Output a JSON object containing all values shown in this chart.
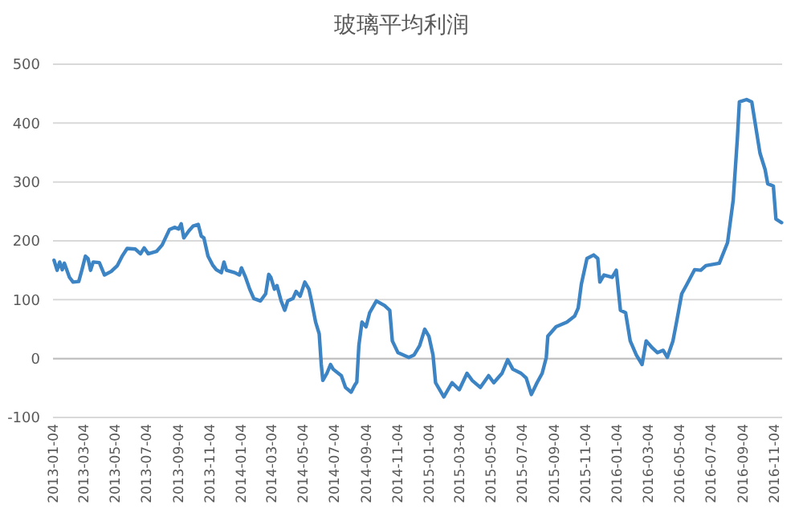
{
  "chart_data": {
    "type": "line",
    "title": "玻璃平均利润",
    "x": [
      "2013-01-06",
      "2013-01-12",
      "2013-01-17",
      "2013-01-22",
      "2013-01-26",
      "2013-02-05",
      "2013-02-12",
      "2013-02-23",
      "2013-03-01",
      "2013-03-08",
      "2013-03-13",
      "2013-03-18",
      "2013-03-23",
      "2013-04-04",
      "2013-04-14",
      "2013-04-27",
      "2013-05-09",
      "2013-05-19",
      "2013-05-28",
      "2013-06-13",
      "2013-06-23",
      "2013-06-30",
      "2013-07-08",
      "2013-07-24",
      "2013-08-04",
      "2013-08-18",
      "2013-08-28",
      "2013-09-05",
      "2013-09-10",
      "2013-09-15",
      "2013-09-25",
      "2013-10-03",
      "2013-10-13",
      "2013-10-19",
      "2013-10-24",
      "2013-11-01",
      "2013-11-10",
      "2013-11-17",
      "2013-11-27",
      "2013-12-02",
      "2013-12-07",
      "2013-12-23",
      "2014-01-01",
      "2014-01-05",
      "2014-01-13",
      "2014-01-21",
      "2014-01-29",
      "2014-02-11",
      "2014-02-21",
      "2014-02-27",
      "2014-03-03",
      "2014-03-10",
      "2014-03-15",
      "2014-03-23",
      "2014-03-30",
      "2014-04-05",
      "2014-04-15",
      "2014-04-21",
      "2014-04-29",
      "2014-05-08",
      "2014-05-16",
      "2014-05-21",
      "2014-05-29",
      "2014-06-05",
      "2014-06-09",
      "2014-06-12",
      "2014-06-20",
      "2014-06-27",
      "2014-07-02",
      "2014-07-18",
      "2014-07-26",
      "2014-08-06",
      "2014-08-13",
      "2014-08-17",
      "2014-08-21",
      "2014-08-27",
      "2014-09-04",
      "2014-09-11",
      "2014-09-24",
      "2014-10-10",
      "2014-10-20",
      "2014-10-25",
      "2014-11-05",
      "2014-11-26",
      "2014-12-06",
      "2014-12-17",
      "2014-12-27",
      "2015-01-04",
      "2015-01-12",
      "2015-01-17",
      "2015-02-02",
      "2015-02-18",
      "2015-03-04",
      "2015-03-19",
      "2015-03-29",
      "2015-04-14",
      "2015-04-30",
      "2015-05-10",
      "2015-05-26",
      "2015-06-06",
      "2015-06-16",
      "2015-07-02",
      "2015-07-12",
      "2015-07-22",
      "2015-08-02",
      "2015-08-12",
      "2015-08-20",
      "2015-08-23",
      "2015-09-08",
      "2015-09-29",
      "2015-10-14",
      "2015-10-21",
      "2015-10-27",
      "2015-11-07",
      "2015-11-20",
      "2015-11-28",
      "2015-12-02",
      "2015-12-10",
      "2015-12-26",
      "2016-01-03",
      "2016-01-11",
      "2016-01-21",
      "2016-01-30",
      "2016-02-11",
      "2016-02-22",
      "2016-03-01",
      "2016-03-13",
      "2016-03-23",
      "2016-04-03",
      "2016-04-11",
      "2016-04-22",
      "2016-04-29",
      "2016-05-09",
      "2016-05-19",
      "2016-06-03",
      "2016-06-15",
      "2016-06-25",
      "2016-07-21",
      "2016-08-06",
      "2016-08-17",
      "2016-08-25",
      "2016-08-29",
      "2016-09-12",
      "2016-09-22",
      "2016-10-08",
      "2016-10-18",
      "2016-10-23",
      "2016-11-03",
      "2016-11-08",
      "2016-11-19"
    ],
    "series": [
      {
        "color": "#3d84c4",
        "values": [
          167,
          150,
          164,
          151,
          162,
          138,
          130,
          131,
          150,
          174,
          170,
          150,
          164,
          163,
          142,
          148,
          158,
          175,
          187,
          186,
          178,
          188,
          178,
          182,
          193,
          219,
          223,
          220,
          229,
          205,
          217,
          225,
          228,
          208,
          205,
          174,
          159,
          151,
          146,
          164,
          150,
          146,
          142,
          154,
          138,
          118,
          102,
          98,
          110,
          143,
          138,
          118,
          124,
          98,
          82,
          98,
          102,
          114,
          106,
          130,
          118,
          98,
          62,
          42,
          -10,
          -37,
          -25,
          -10,
          -18,
          -29,
          -49,
          -57,
          -45,
          -40,
          22,
          62,
          54,
          78,
          98,
          90,
          82,
          30,
          10,
          2,
          6,
          22,
          50,
          38,
          6,
          -41,
          -65,
          -41,
          -53,
          -25,
          -37,
          -49,
          -29,
          -41,
          -25,
          -2,
          -18,
          -25,
          -33,
          -61,
          -41,
          -25,
          2,
          38,
          54,
          62,
          72,
          86,
          126,
          170,
          176,
          170,
          130,
          142,
          138,
          150,
          82,
          78,
          30,
          6,
          -10,
          30,
          18,
          10,
          14,
          2,
          30,
          62,
          110,
          126,
          151,
          150,
          158,
          162,
          197,
          269,
          373,
          436,
          440,
          436,
          349,
          321,
          297,
          293,
          237,
          231
        ]
      }
    ],
    "xlim": [
      "2013-01-04",
      "2016-11-20"
    ],
    "xticks": [
      "2013-01-04",
      "2013-03-04",
      "2013-05-04",
      "2013-07-04",
      "2013-09-04",
      "2013-11-04",
      "2014-01-04",
      "2014-03-04",
      "2014-05-04",
      "2014-07-04",
      "2014-09-04",
      "2014-11-04",
      "2015-01-04",
      "2015-03-04",
      "2015-05-04",
      "2015-07-04",
      "2015-09-04",
      "2015-11-04",
      "2016-01-04",
      "2016-03-04",
      "2016-05-04",
      "2016-07-04",
      "2016-09-04",
      "2016-11-04"
    ],
    "ylim": [
      -100,
      500
    ],
    "yticks": [
      -100,
      0,
      100,
      200,
      300,
      400,
      500
    ],
    "grid": "y"
  }
}
